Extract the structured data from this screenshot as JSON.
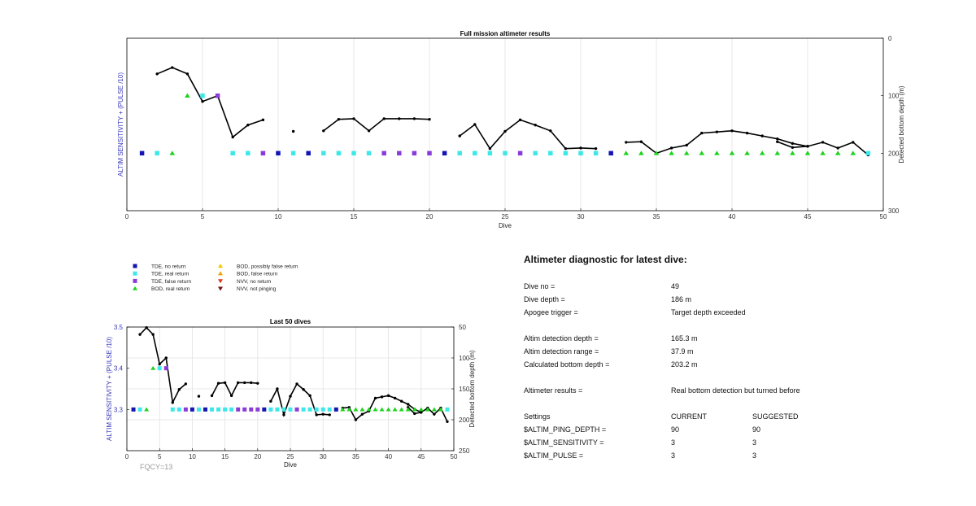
{
  "colors": {
    "tde_no_return": "#1414b4",
    "tde_real_return": "#3ee8e8",
    "tde_false_return": "#8a3cd8",
    "bod_real_return": "#1ed21e",
    "bod_possibly_false": "#f0c800",
    "bod_false_return": "#f0a000",
    "nvv_no_return": "#dc3c1e",
    "nvv_not_pinging": "#781414",
    "line": "#000000",
    "axis_label_blue": "#3535b8"
  },
  "chart_data": [
    {
      "type": "scatter",
      "title": "Full mission altimeter results",
      "xlabel": "Dive",
      "ylabel_left": "ALTIM SENSITIVITY + (PULSE /10)",
      "ylabel_right": "Detected bottom depth (m)",
      "xlim": [
        0,
        50
      ],
      "xticks": [
        "0",
        "5",
        "10",
        "15",
        "20",
        "25",
        "30",
        "35",
        "40",
        "45",
        "50"
      ],
      "ylim_right": [
        0,
        300
      ],
      "yticks_right": [
        "0",
        "100",
        "200",
        "300"
      ],
      "right_axis_reversed": true,
      "grid": "vertical",
      "markers": [
        {
          "dive": 1,
          "cat": "tde_no_return",
          "y": 200
        },
        {
          "dive": 2,
          "cat": "tde_real_return",
          "y": 200
        },
        {
          "dive": 3,
          "cat": "bod_real_return",
          "y": 200
        },
        {
          "dive": 4,
          "cat": "bod_real_return",
          "y": 100
        },
        {
          "dive": 5,
          "cat": "tde_real_return",
          "y": 100
        },
        {
          "dive": 6,
          "cat": "tde_false_return",
          "y": 100
        },
        {
          "dive": 7,
          "cat": "tde_real_return",
          "y": 200
        },
        {
          "dive": 8,
          "cat": "tde_real_return",
          "y": 200
        },
        {
          "dive": 9,
          "cat": "tde_false_return",
          "y": 200
        },
        {
          "dive": 10,
          "cat": "tde_no_return",
          "y": 200
        },
        {
          "dive": 11,
          "cat": "tde_real_return",
          "y": 200
        },
        {
          "dive": 12,
          "cat": "tde_no_return",
          "y": 200
        },
        {
          "dive": 13,
          "cat": "tde_real_return",
          "y": 200
        },
        {
          "dive": 14,
          "cat": "tde_real_return",
          "y": 200
        },
        {
          "dive": 15,
          "cat": "tde_real_return",
          "y": 200
        },
        {
          "dive": 16,
          "cat": "tde_real_return",
          "y": 200
        },
        {
          "dive": 17,
          "cat": "tde_false_return",
          "y": 200
        },
        {
          "dive": 18,
          "cat": "tde_false_return",
          "y": 200
        },
        {
          "dive": 19,
          "cat": "tde_false_return",
          "y": 200
        },
        {
          "dive": 20,
          "cat": "tde_false_return",
          "y": 200
        },
        {
          "dive": 21,
          "cat": "tde_no_return",
          "y": 200
        },
        {
          "dive": 22,
          "cat": "tde_real_return",
          "y": 200
        },
        {
          "dive": 23,
          "cat": "tde_real_return",
          "y": 200
        },
        {
          "dive": 24,
          "cat": "tde_real_return",
          "y": 200
        },
        {
          "dive": 25,
          "cat": "tde_real_return",
          "y": 200
        },
        {
          "dive": 26,
          "cat": "tde_false_return",
          "y": 200
        },
        {
          "dive": 27,
          "cat": "tde_real_return",
          "y": 200
        },
        {
          "dive": 28,
          "cat": "tde_real_return",
          "y": 200
        },
        {
          "dive": 29,
          "cat": "tde_real_return",
          "y": 200
        },
        {
          "dive": 30,
          "cat": "tde_real_return",
          "y": 200
        },
        {
          "dive": 31,
          "cat": "tde_real_return",
          "y": 200
        },
        {
          "dive": 32,
          "cat": "tde_no_return",
          "y": 200
        },
        {
          "dive": 33,
          "cat": "bod_real_return",
          "y": 200
        },
        {
          "dive": 34,
          "cat": "bod_real_return",
          "y": 200
        },
        {
          "dive": 35,
          "cat": "bod_real_return",
          "y": 200
        },
        {
          "dive": 36,
          "cat": "bod_real_return",
          "y": 200
        },
        {
          "dive": 37,
          "cat": "bod_real_return",
          "y": 200
        },
        {
          "dive": 38,
          "cat": "bod_real_return",
          "y": 200
        },
        {
          "dive": 39,
          "cat": "bod_real_return",
          "y": 200
        },
        {
          "dive": 40,
          "cat": "bod_real_return",
          "y": 200
        },
        {
          "dive": 41,
          "cat": "bod_real_return",
          "y": 200
        },
        {
          "dive": 42,
          "cat": "bod_real_return",
          "y": 200
        },
        {
          "dive": 43,
          "cat": "bod_real_return",
          "y": 200
        },
        {
          "dive": 44,
          "cat": "bod_real_return",
          "y": 200
        },
        {
          "dive": 45,
          "cat": "bod_real_return",
          "y": 200
        },
        {
          "dive": 46,
          "cat": "bod_real_return",
          "y": 200
        },
        {
          "dive": 47,
          "cat": "bod_real_return",
          "y": 200
        },
        {
          "dive": 48,
          "cat": "bod_real_return",
          "y": 200
        },
        {
          "dive": 49,
          "cat": "tde_real_return",
          "y": 200
        }
      ],
      "depth_segments": [
        [
          [
            2,
            62
          ],
          [
            3,
            51
          ],
          [
            4,
            62
          ],
          [
            5,
            110
          ],
          [
            6,
            100
          ],
          [
            7,
            172
          ],
          [
            8,
            151
          ],
          [
            9,
            142
          ]
        ],
        [
          [
            11,
            162
          ]
        ],
        [
          [
            13,
            161
          ],
          [
            14,
            141
          ],
          [
            15,
            140
          ],
          [
            16,
            161
          ],
          [
            17,
            140
          ],
          [
            18,
            140
          ],
          [
            19,
            140
          ],
          [
            20,
            141
          ]
        ],
        [
          [
            22,
            170
          ],
          [
            23,
            150
          ],
          [
            24,
            192
          ],
          [
            25,
            162
          ],
          [
            26,
            142
          ],
          [
            27,
            151
          ],
          [
            28,
            161
          ],
          [
            29,
            192
          ],
          [
            30,
            191
          ],
          [
            31,
            192
          ]
        ],
        [
          [
            33,
            181
          ],
          [
            34,
            180
          ],
          [
            35,
            200
          ],
          [
            36,
            191
          ],
          [
            37,
            186
          ],
          [
            38,
            165
          ],
          [
            39,
            163
          ],
          [
            40,
            161
          ],
          [
            41,
            165
          ],
          [
            42,
            170
          ],
          [
            43,
            175
          ],
          [
            44,
            183
          ],
          [
            45,
            188
          ],
          [
            46,
            181
          ],
          [
            47,
            191
          ],
          [
            48,
            181
          ],
          [
            49,
            203
          ]
        ],
        [
          [
            43,
            180
          ],
          [
            44,
            190
          ],
          [
            45,
            188
          ]
        ]
      ]
    },
    {
      "type": "scatter",
      "title": "Last 50 dives",
      "xlabel": "Dive",
      "ylabel_left": "ALTIM SENSITIVITY + (PULSE /10)",
      "ylabel_right": "Detected bottom depth (m)",
      "xlim": [
        0,
        50
      ],
      "xticks": [
        "0",
        "5",
        "10",
        "15",
        "20",
        "25",
        "30",
        "35",
        "40",
        "45",
        "50"
      ],
      "ylim_left": [
        3.2,
        3.5
      ],
      "yticks_left": [
        "3.3",
        "3.4",
        "3.5"
      ],
      "ylim_right": [
        50,
        250
      ],
      "yticks_right": [
        "50",
        "100",
        "150",
        "200",
        "250"
      ],
      "right_axis_reversed": true,
      "grid": "both"
    }
  ],
  "legend": [
    {
      "cat": "tde_no_return",
      "shape": "square",
      "label": "TDE, no return"
    },
    {
      "cat": "tde_real_return",
      "shape": "square",
      "label": "TDE, real return"
    },
    {
      "cat": "tde_false_return",
      "shape": "square",
      "label": "TDE, false return"
    },
    {
      "cat": "bod_real_return",
      "shape": "triangle-up",
      "label": "BOD, real return"
    },
    {
      "cat": "bod_possibly_false",
      "shape": "triangle-up",
      "label": "BOD, possibly false return"
    },
    {
      "cat": "bod_false_return",
      "shape": "triangle-up",
      "label": "BOD, false return"
    },
    {
      "cat": "nvv_no_return",
      "shape": "triangle-down",
      "label": "NVV, no return"
    },
    {
      "cat": "nvv_not_pinging",
      "shape": "triangle-down",
      "label": "NVV, not pinging"
    }
  ],
  "fqcy_label": "FQCY=13",
  "diagnostic": {
    "heading": "Altimeter diagnostic for latest dive:",
    "dive_no_label": "Dive no =",
    "dive_no": "49",
    "dive_depth_label": "Dive depth =",
    "dive_depth": "186 m",
    "apogee_label": "Apogee trigger =",
    "apogee": "Target depth exceeded",
    "det_depth_label": "Altim detection depth =",
    "det_depth": "165.3 m",
    "det_range_label": "Altim detection range =",
    "det_range": "37.9 m",
    "calc_depth_label": "Calculated bottom depth =",
    "calc_depth": "203.2 m",
    "results_label": "Altimeter results =",
    "results": "Real bottom detection but turned before",
    "settings_label": "Settings",
    "current_label": "CURRENT",
    "suggested_label": "SUGGESTED",
    "ping_label": "$ALTIM_PING_DEPTH =",
    "ping_current": "90",
    "ping_suggested": "90",
    "sens_label": "$ALTIM_SENSITIVITY =",
    "sens_current": "3",
    "sens_suggested": "3",
    "pulse_label": "$ALTIM_PULSE =",
    "pulse_current": "3",
    "pulse_suggested": "3"
  }
}
